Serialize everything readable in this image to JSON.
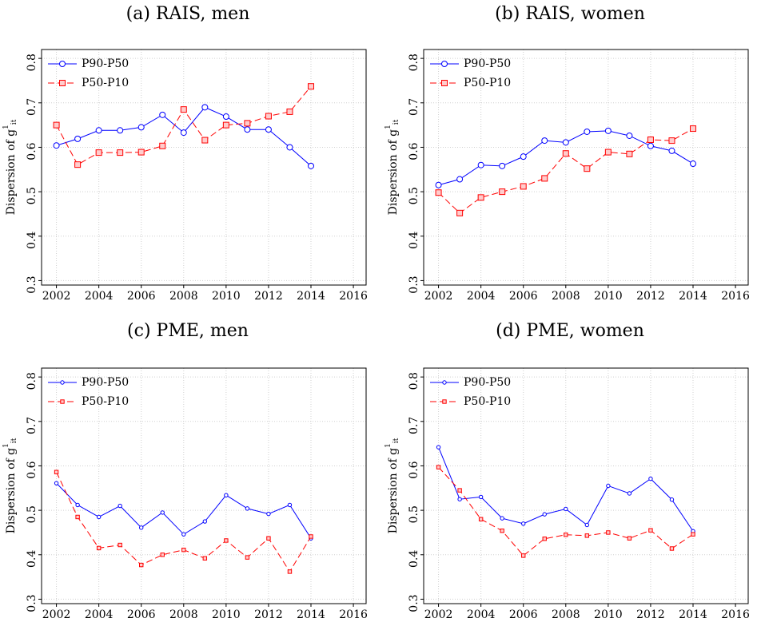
{
  "chart_data": [
    {
      "type": "line",
      "title": "(a) RAIS, men",
      "ylabel": "Dispersion of g",
      "ylabel_sup": "1",
      "ylabel_sub": "it",
      "x": [
        2002,
        2003,
        2004,
        2005,
        2006,
        2007,
        2008,
        2009,
        2010,
        2011,
        2012,
        2013,
        2014
      ],
      "series": [
        {
          "name": "P90-P50",
          "color": "#0000ff",
          "linestyle": "solid",
          "marker": "circle",
          "values": [
            0.604,
            0.619,
            0.638,
            0.638,
            0.645,
            0.673,
            0.633,
            0.69,
            0.669,
            0.64,
            0.64,
            0.6,
            0.558
          ]
        },
        {
          "name": "P50-P10",
          "color": "#ff0000",
          "linestyle": "dashed",
          "marker": "square",
          "values": [
            0.65,
            0.561,
            0.588,
            0.588,
            0.589,
            0.603,
            0.685,
            0.616,
            0.65,
            0.654,
            0.67,
            0.68,
            0.737
          ]
        }
      ],
      "xlim": [
        2001.3,
        2016.6
      ],
      "ylim": [
        0.29,
        0.82
      ],
      "xticks": [
        2002,
        2004,
        2006,
        2008,
        2010,
        2012,
        2014,
        2016
      ],
      "yticks": [
        0.3,
        0.4,
        0.5,
        0.6,
        0.7,
        0.8
      ],
      "grid": true,
      "legend": "upper left"
    },
    {
      "type": "line",
      "title": "(b) RAIS, women",
      "ylabel": "Dispersion of g",
      "ylabel_sup": "1",
      "ylabel_sub": "it",
      "x": [
        2002,
        2003,
        2004,
        2005,
        2006,
        2007,
        2008,
        2009,
        2010,
        2011,
        2012,
        2013,
        2014
      ],
      "series": [
        {
          "name": "P90-P50",
          "color": "#0000ff",
          "linestyle": "solid",
          "marker": "circle",
          "values": [
            0.515,
            0.528,
            0.56,
            0.558,
            0.579,
            0.615,
            0.611,
            0.635,
            0.637,
            0.626,
            0.603,
            0.592,
            0.563
          ]
        },
        {
          "name": "P50-P10",
          "color": "#ff0000",
          "linestyle": "dashed",
          "marker": "square",
          "values": [
            0.498,
            0.452,
            0.487,
            0.5,
            0.512,
            0.53,
            0.586,
            0.552,
            0.589,
            0.585,
            0.617,
            0.615,
            0.642
          ]
        }
      ],
      "xlim": [
        2001.3,
        2016.6
      ],
      "ylim": [
        0.29,
        0.82
      ],
      "xticks": [
        2002,
        2004,
        2006,
        2008,
        2010,
        2012,
        2014,
        2016
      ],
      "yticks": [
        0.3,
        0.4,
        0.5,
        0.6,
        0.7,
        0.8
      ],
      "grid": true,
      "legend": "upper left"
    },
    {
      "type": "line",
      "title": "(c) PME, men",
      "ylabel": "Dispersion of g",
      "ylabel_sup": "1",
      "ylabel_sub": "it",
      "x": [
        2002,
        2003,
        2004,
        2005,
        2006,
        2007,
        2008,
        2009,
        2010,
        2011,
        2012,
        2013,
        2014
      ],
      "series": [
        {
          "name": "P90-P50",
          "color": "#0000ff",
          "linestyle": "solid",
          "marker": "circle",
          "values": [
            0.561,
            0.512,
            0.485,
            0.51,
            0.461,
            0.495,
            0.446,
            0.475,
            0.534,
            0.504,
            0.492,
            0.512,
            0.437
          ]
        },
        {
          "name": "P50-P10",
          "color": "#ff0000",
          "linestyle": "dashed",
          "marker": "square",
          "values": [
            0.586,
            0.485,
            0.415,
            0.422,
            0.377,
            0.4,
            0.411,
            0.392,
            0.432,
            0.394,
            0.437,
            0.362,
            0.441
          ]
        }
      ],
      "xlim": [
        2001.3,
        2016.6
      ],
      "ylim": [
        0.29,
        0.82
      ],
      "xticks": [
        2002,
        2004,
        2006,
        2008,
        2010,
        2012,
        2014,
        2016
      ],
      "yticks": [
        0.3,
        0.4,
        0.5,
        0.6,
        0.7,
        0.8
      ],
      "grid": true,
      "legend": "upper left"
    },
    {
      "type": "line",
      "title": "(d) PME, women",
      "ylabel": "Dispersion of g",
      "ylabel_sup": "1",
      "ylabel_sub": "it",
      "x": [
        2002,
        2003,
        2004,
        2005,
        2006,
        2007,
        2008,
        2009,
        2010,
        2011,
        2012,
        2013,
        2014
      ],
      "series": [
        {
          "name": "P90-P50",
          "color": "#0000ff",
          "linestyle": "solid",
          "marker": "circle",
          "values": [
            0.642,
            0.525,
            0.53,
            0.482,
            0.47,
            0.491,
            0.503,
            0.467,
            0.555,
            0.538,
            0.571,
            0.524,
            0.453
          ]
        },
        {
          "name": "P50-P10",
          "color": "#ff0000",
          "linestyle": "dashed",
          "marker": "square",
          "values": [
            0.597,
            0.545,
            0.48,
            0.454,
            0.398,
            0.436,
            0.445,
            0.443,
            0.45,
            0.437,
            0.455,
            0.414,
            0.446
          ]
        }
      ],
      "xlim": [
        2001.3,
        2016.6
      ],
      "ylim": [
        0.29,
        0.82
      ],
      "xticks": [
        2002,
        2004,
        2006,
        2008,
        2010,
        2012,
        2014,
        2016
      ],
      "yticks": [
        0.3,
        0.4,
        0.5,
        0.6,
        0.7,
        0.8
      ],
      "grid": true,
      "legend": "upper left"
    }
  ]
}
